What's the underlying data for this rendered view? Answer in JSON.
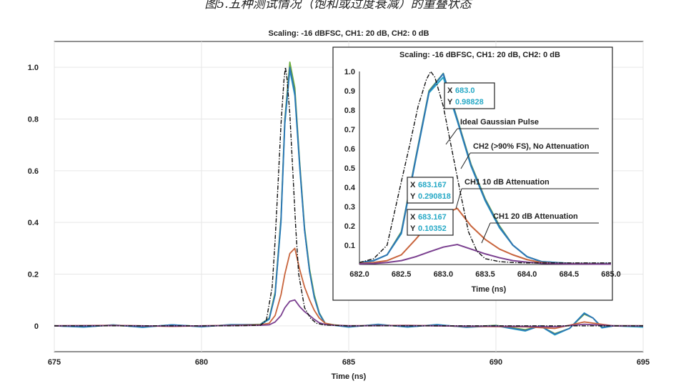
{
  "figure_caption": "图5.五种测试情况（饱和或过度衰减）的重叠状态",
  "colors": {
    "green": "#6aab3c",
    "teal": "#27a9c6",
    "blue": "#2f74b5",
    "orange": "#c8643c",
    "purple": "#7a3f8f",
    "black": "#111111",
    "cursor_value": "#27a9c6"
  },
  "chart_data": [
    {
      "type": "line",
      "title": "Scaling: -16 dBFSC, CH1: 20 dB, CH2: 0 dB",
      "xlabel": "Time (ns)",
      "ylabel": "",
      "xlim": [
        675,
        695
      ],
      "ylim": [
        -0.1,
        1.1
      ],
      "xticks": [
        675,
        680,
        685,
        690,
        695
      ],
      "xtick_labels": [
        "675",
        "680",
        "685",
        "690",
        "695"
      ],
      "yticks": [
        0,
        0.2,
        0.4,
        0.6,
        0.8,
        1.0
      ],
      "ytick_labels": [
        "0",
        "0.2",
        "0.4",
        "0.6",
        "0.8",
        "1.0"
      ],
      "grid": true,
      "series": [
        {
          "color": "green",
          "dash": "solid",
          "x": [
            675,
            676,
            677,
            678,
            679,
            680,
            681,
            682,
            682.3,
            682.5,
            682.7,
            682.83,
            683,
            683.17,
            683.33,
            683.5,
            683.67,
            683.83,
            684,
            684.2,
            684.5,
            685,
            686,
            687,
            688,
            689,
            690,
            691,
            691.5,
            692,
            692.5,
            693,
            693.3,
            693.6,
            694,
            695
          ],
          "y": [
            0,
            -0.003,
            0.002,
            -0.004,
            0.003,
            -0.002,
            0.003,
            0.006,
            0.03,
            0.13,
            0.42,
            0.8,
            1.02,
            0.92,
            0.64,
            0.38,
            0.22,
            0.12,
            0.05,
            0.01,
            0.004,
            -0.003,
            0.004,
            -0.003,
            0.003,
            -0.004,
            0.002,
            -0.015,
            0.0,
            -0.03,
            -0.01,
            0.045,
            0.03,
            -0.005,
            0.0,
            0
          ]
        },
        {
          "color": "teal",
          "dash": "solid",
          "x": [
            675,
            676,
            677,
            678,
            679,
            680,
            681,
            682,
            682.3,
            682.5,
            682.7,
            682.83,
            683,
            683.17,
            683.33,
            683.5,
            683.67,
            683.83,
            684,
            684.2,
            684.5,
            685,
            686,
            687,
            688,
            689,
            690,
            691,
            691.5,
            692,
            692.5,
            693,
            693.3,
            693.6,
            694,
            695
          ],
          "y": [
            0,
            -0.005,
            0.004,
            -0.006,
            0.004,
            -0.004,
            0.005,
            0.004,
            0.025,
            0.12,
            0.4,
            0.78,
            0.99,
            0.89,
            0.62,
            0.37,
            0.21,
            0.11,
            0.045,
            0.008,
            0.002,
            -0.005,
            0.006,
            -0.005,
            0.005,
            -0.006,
            0.0,
            -0.02,
            0.0,
            -0.035,
            -0.01,
            0.05,
            0.03,
            -0.008,
            0.0,
            -0.005
          ]
        },
        {
          "color": "blue",
          "dash": "solid",
          "x": [
            675,
            676,
            677,
            678,
            679,
            680,
            681,
            682,
            682.3,
            682.5,
            682.7,
            682.83,
            683,
            683.17,
            683.33,
            683.5,
            683.67,
            683.83,
            684,
            684.2,
            684.5,
            685,
            686,
            687,
            688,
            689,
            690,
            691,
            691.5,
            692,
            692.5,
            693,
            693.3,
            693.6,
            694,
            695
          ],
          "y": [
            0,
            -0.004,
            0.003,
            -0.005,
            0.004,
            -0.003,
            0.004,
            0.005,
            0.028,
            0.12,
            0.41,
            0.79,
            1.0,
            0.9,
            0.63,
            0.37,
            0.21,
            0.11,
            0.048,
            0.009,
            0.003,
            -0.004,
            0.005,
            -0.004,
            0.004,
            -0.005,
            0.001,
            -0.018,
            0.0,
            -0.032,
            -0.01,
            0.048,
            0.03,
            -0.006,
            0.0,
            -0.002
          ]
        },
        {
          "color": "orange",
          "dash": "solid",
          "x": [
            675,
            677,
            679,
            681,
            682,
            682.3,
            682.5,
            682.7,
            682.83,
            683,
            683.17,
            683.33,
            683.5,
            683.67,
            683.83,
            684,
            684.2,
            684.5,
            685,
            687,
            689,
            691,
            692,
            693,
            694,
            695
          ],
          "y": [
            0,
            0.002,
            -0.002,
            0.002,
            0.004,
            0.01,
            0.04,
            0.12,
            0.2,
            0.28,
            0.3,
            0.22,
            0.15,
            0.1,
            0.06,
            0.03,
            0.01,
            0.003,
            0,
            0.002,
            -0.002,
            -0.004,
            -0.01,
            0.015,
            0,
            0
          ]
        },
        {
          "color": "purple",
          "dash": "solid",
          "x": [
            675,
            677,
            679,
            681,
            682,
            682.3,
            682.5,
            682.7,
            682.83,
            683,
            683.17,
            683.33,
            683.5,
            683.67,
            683.83,
            684,
            684.2,
            684.5,
            685,
            687,
            689,
            691,
            692,
            693,
            694,
            695
          ],
          "y": [
            0,
            0.001,
            -0.001,
            0.001,
            0.002,
            0.004,
            0.015,
            0.04,
            0.07,
            0.095,
            0.1,
            0.075,
            0.055,
            0.04,
            0.025,
            0.012,
            0.005,
            0.002,
            0,
            0.001,
            -0.001,
            -0.002,
            -0.004,
            0.006,
            0,
            0
          ]
        },
        {
          "color": "black",
          "dash": "dashdot",
          "x": [
            675,
            678,
            681,
            682,
            682.2,
            682.4,
            682.5,
            682.6,
            682.7,
            682.8,
            682.85,
            682.9,
            683,
            683.1,
            683.2,
            683.3,
            683.5,
            683.7,
            683.9,
            684.2,
            685,
            688,
            691,
            695
          ],
          "y": [
            0,
            0,
            0,
            0.002,
            0.02,
            0.15,
            0.33,
            0.55,
            0.78,
            0.95,
            1.0,
            0.96,
            0.82,
            0.6,
            0.38,
            0.2,
            0.07,
            0.03,
            0.01,
            0.003,
            0,
            0,
            0,
            0
          ]
        }
      ]
    },
    {
      "type": "line",
      "title": "Scaling: -16 dBFSC, CH1: 20 dB, CH2: 0 dB",
      "xlabel": "Time (ns)",
      "ylabel": "",
      "xlim": [
        682,
        685
      ],
      "ylim": [
        0,
        1.0
      ],
      "xticks": [
        682.0,
        682.5,
        683.0,
        683.5,
        684.0,
        684.5,
        685.0
      ],
      "xtick_labels": [
        "682.0",
        "682.5",
        "683.0",
        "683.5",
        "684.0",
        "684.5",
        "685.0"
      ],
      "yticks": [
        0.1,
        0.2,
        0.3,
        0.4,
        0.5,
        0.6,
        0.7,
        0.8,
        0.9,
        1.0
      ],
      "ytick_labels": [
        "0.1",
        "0.2",
        "0.3",
        "0.4",
        "0.5",
        "0.6",
        "0.7",
        "0.8",
        "0.9",
        "1.0"
      ],
      "grid": false,
      "series": [
        {
          "color": "green",
          "dash": "solid",
          "x": [
            682.0,
            682.17,
            682.33,
            682.5,
            682.67,
            682.83,
            683.0,
            683.17,
            683.33,
            683.5,
            683.67,
            683.83,
            684.0,
            684.17,
            684.33,
            684.5,
            684.67,
            684.83,
            685.0
          ],
          "y": [
            0.01,
            0.02,
            0.05,
            0.17,
            0.55,
            0.9,
            0.99,
            0.75,
            0.52,
            0.34,
            0.2,
            0.1,
            0.04,
            0.015,
            0.01,
            0.006,
            0.005,
            0.004,
            0.005
          ]
        },
        {
          "color": "teal",
          "dash": "solid",
          "x": [
            682.0,
            682.17,
            682.33,
            682.5,
            682.67,
            682.83,
            683.0,
            683.17,
            683.33,
            683.5,
            683.67,
            683.83,
            684.0,
            684.17,
            684.33,
            684.5,
            684.67,
            684.83,
            685.0
          ],
          "y": [
            0.01,
            0.02,
            0.05,
            0.16,
            0.54,
            0.89,
            0.97,
            0.74,
            0.51,
            0.33,
            0.19,
            0.1,
            0.04,
            0.015,
            0.01,
            0.006,
            0.005,
            0.004,
            0.005
          ]
        },
        {
          "color": "blue",
          "dash": "solid",
          "x": [
            682.0,
            682.17,
            682.33,
            682.5,
            682.67,
            682.83,
            683.0,
            683.17,
            683.33,
            683.5,
            683.67,
            683.83,
            684.0,
            684.17,
            684.33,
            684.5,
            684.67,
            684.83,
            685.0
          ],
          "y": [
            0.01,
            0.02,
            0.05,
            0.165,
            0.545,
            0.895,
            0.98828,
            0.745,
            0.515,
            0.335,
            0.195,
            0.1,
            0.04,
            0.015,
            0.01,
            0.006,
            0.005,
            0.004,
            0.005
          ]
        },
        {
          "color": "orange",
          "dash": "solid",
          "x": [
            682.0,
            682.17,
            682.33,
            682.5,
            682.67,
            682.83,
            683.0,
            683.167,
            683.33,
            683.5,
            683.67,
            683.83,
            684.0,
            684.17,
            684.33,
            684.5,
            684.67,
            684.83,
            685.0
          ],
          "y": [
            0.005,
            0.01,
            0.02,
            0.05,
            0.13,
            0.21,
            0.26,
            0.290818,
            0.2,
            0.13,
            0.08,
            0.05,
            0.025,
            0.01,
            0.006,
            0.004,
            0.004,
            0.003,
            0.003
          ]
        },
        {
          "color": "purple",
          "dash": "solid",
          "x": [
            682.0,
            682.17,
            682.33,
            682.5,
            682.67,
            682.83,
            683.0,
            683.167,
            683.33,
            683.5,
            683.67,
            683.83,
            684.0,
            684.17,
            684.33,
            684.5,
            684.67,
            684.83,
            685.0
          ],
          "y": [
            0.003,
            0.005,
            0.01,
            0.02,
            0.04,
            0.065,
            0.09,
            0.10352,
            0.08,
            0.055,
            0.035,
            0.02,
            0.012,
            0.006,
            0.004,
            0.003,
            0.003,
            0.002,
            0.002
          ]
        },
        {
          "color": "black",
          "dash": "dashdot",
          "x": [
            682.0,
            682.17,
            682.33,
            682.5,
            682.6,
            682.7,
            682.8,
            682.85,
            682.9,
            683.0,
            683.1,
            683.2,
            683.3,
            683.4,
            683.5,
            683.67,
            683.83,
            684.0,
            685.0
          ],
          "y": [
            0.01,
            0.03,
            0.1,
            0.43,
            0.62,
            0.82,
            0.96,
            1.0,
            0.97,
            0.82,
            0.6,
            0.38,
            0.17,
            0.07,
            0.03,
            0.015,
            0.01,
            0.008,
            0.008
          ]
        }
      ],
      "series_labels": [
        {
          "text": "Ideal Gaussian Pulse",
          "color": "black"
        },
        {
          "text": "CH2 (>90% FS), No Attenuation",
          "color": "blue"
        },
        {
          "text": "CH1  10 dB Attenuation",
          "color": "orange"
        },
        {
          "text": "CH1  20 dB Attenuation",
          "color": "purple"
        }
      ],
      "cursors": [
        {
          "x_label": "X",
          "x_value": "683.0",
          "y_label": "Y",
          "y_value": "0.98828"
        },
        {
          "x_label": "X",
          "x_value": "683.167",
          "y_label": "Y",
          "y_value": "0.290818"
        },
        {
          "x_label": "X",
          "x_value": "683.167",
          "y_label": "Y",
          "y_value": "0.10352"
        }
      ]
    }
  ]
}
